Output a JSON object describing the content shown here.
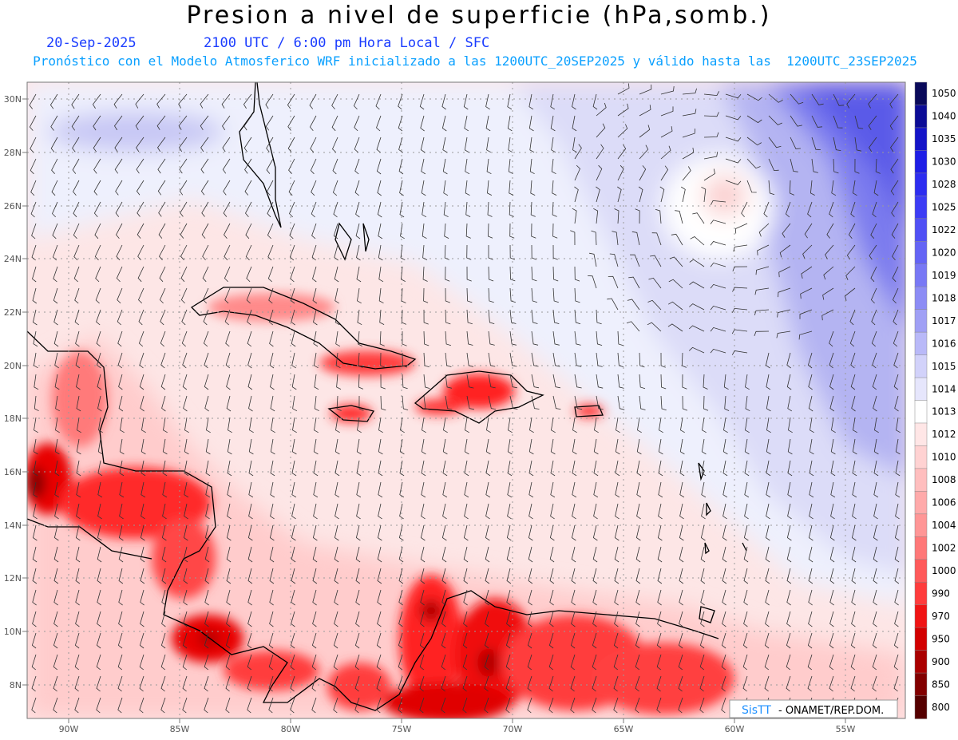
{
  "header": {
    "title": "Presion a nivel de superficie (hPa,somb.)",
    "date": "20-Sep-2025",
    "time_info": "2100 UTC / 6:00 pm Hora Local / SFC",
    "subtitle": "Pronóstico con el Modelo Atmosferico WRF inicializado a las 1200UTC_20SEP2025 y válido hasta las  1200UTC_23SEP2025"
  },
  "map": {
    "lon_labels": [
      "90W",
      "85W",
      "80W",
      "75W",
      "70W",
      "65W",
      "60W",
      "55W"
    ],
    "lat_labels": [
      "30N",
      "28N",
      "26N",
      "24N",
      "22N",
      "20N",
      "18N",
      "16N",
      "14N",
      "12N",
      "10N",
      "8N"
    ],
    "lon_range": [
      -91.8,
      -52.4
    ],
    "lat_range": [
      6.7,
      30.6
    ]
  },
  "colorbar": {
    "levels": [
      "1050",
      "1040",
      "1035",
      "1030",
      "1028",
      "1025",
      "1022",
      "1020",
      "1019",
      "1018",
      "1017",
      "1016",
      "1015",
      "1014",
      "1013",
      "1012",
      "1010",
      "1008",
      "1006",
      "1004",
      "1002",
      "1000",
      "990",
      "970",
      "950",
      "900",
      "850",
      "800"
    ],
    "colors": [
      "#0a0a5a",
      "#0c0c96",
      "#1414c8",
      "#1e1ee6",
      "#2d2df0",
      "#3c3cf5",
      "#5050f5",
      "#6464f5",
      "#7878f5",
      "#8c8cf5",
      "#a0a0f5",
      "#b9b9f8",
      "#d2d2fa",
      "#e6e6fc",
      "#ffffff",
      "#ffe6e6",
      "#ffd2d2",
      "#ffbebe",
      "#ffaaaa",
      "#ff9696",
      "#ff7878",
      "#ff5a5a",
      "#ff3c3c",
      "#f01414",
      "#d20000",
      "#aa0000",
      "#820000",
      "#550000"
    ]
  },
  "credits": {
    "logo_text": "SisTT",
    "org": "- ONAMET/REP.DOM."
  }
}
